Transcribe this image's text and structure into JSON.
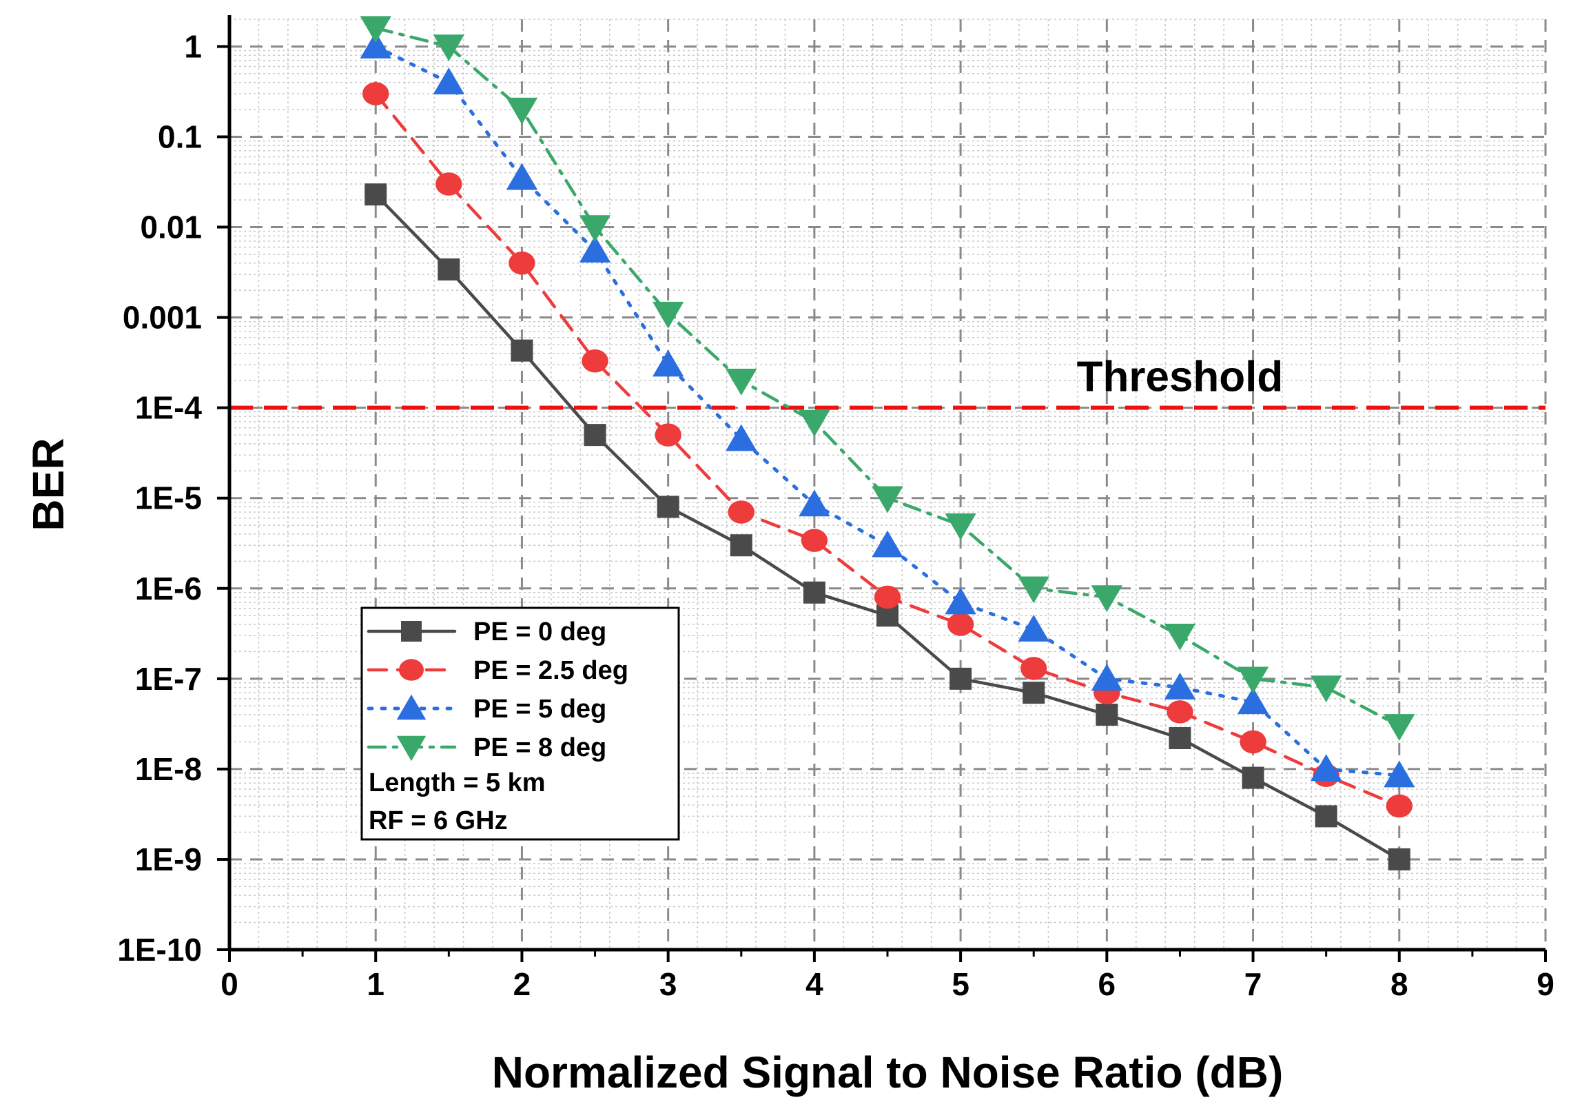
{
  "chart_data": {
    "type": "line",
    "title": "",
    "xlabel": "Normalized Signal to Noise Ratio (dB)",
    "ylabel": "BER",
    "xlim": [
      0,
      9
    ],
    "ylim": [
      1e-10,
      2
    ],
    "yscale": "log",
    "grid": true,
    "x_ticks": [
      "0",
      "1",
      "2",
      "3",
      "4",
      "5",
      "6",
      "7",
      "8",
      "9"
    ],
    "x_tick_values": [
      0,
      1,
      2,
      3,
      4,
      5,
      6,
      7,
      8,
      9
    ],
    "y_ticks": [
      "1",
      "0.1",
      "0.01",
      "0.001",
      "1E-4",
      "1E-5",
      "1E-6",
      "1E-7",
      "1E-8",
      "1E-9",
      "1E-10"
    ],
    "y_tick_values": [
      1,
      0.1,
      0.01,
      0.001,
      0.0001,
      1e-05,
      1e-06,
      1e-07,
      1e-08,
      1e-09,
      1e-10
    ],
    "x": [
      1,
      1.5,
      2,
      2.5,
      3,
      3.5,
      4,
      4.5,
      5,
      5.5,
      6,
      6.5,
      7,
      7.5,
      8
    ],
    "series": [
      {
        "name": "PE = 0 deg",
        "color": "#4a4a4a",
        "marker": "square",
        "dash": "solid",
        "values": [
          0.023,
          0.0034,
          0.00043,
          5e-05,
          8e-06,
          3e-06,
          9e-07,
          5e-07,
          1e-07,
          7e-08,
          4e-08,
          2.2e-08,
          8e-09,
          3e-09,
          1e-09
        ]
      },
      {
        "name": "PE = 2.5 deg",
        "color": "#ee3b3b",
        "marker": "circle",
        "dash": "dash",
        "values": [
          0.3,
          0.03,
          0.004,
          0.00033,
          5e-05,
          7e-06,
          3.4e-06,
          8e-07,
          4e-07,
          1.3e-07,
          7e-08,
          4.3e-08,
          2e-08,
          8.5e-09,
          3.9e-09
        ]
      },
      {
        "name": "PE = 5 deg",
        "color": "#2a6ee0",
        "marker": "triangle-up",
        "dash": "dot",
        "values": [
          1.0,
          0.4,
          0.035,
          0.0055,
          0.0003,
          4.5e-05,
          8.5e-06,
          3e-06,
          7e-07,
          3.5e-07,
          1e-07,
          8e-08,
          5.5e-08,
          1e-08,
          8.5e-09
        ]
      },
      {
        "name": "PE = 8 deg",
        "color": "#3aa86b",
        "marker": "triangle-down",
        "dash": "dashdot",
        "values": [
          1.6,
          1.0,
          0.2,
          0.01,
          0.0011,
          0.0002,
          7e-05,
          1e-05,
          5e-06,
          1e-06,
          8e-07,
          3e-07,
          1e-07,
          8e-08,
          3e-08
        ]
      }
    ],
    "threshold": {
      "value": 0.0001,
      "label": "Threshold",
      "color": "#ee1111"
    },
    "legend": {
      "placement": "bottom-left",
      "entries": [
        "PE = 0 deg",
        "PE = 2.5 deg",
        "PE = 5 deg",
        "PE = 8 deg"
      ],
      "notes": [
        "Length = 5 km",
        "RF = 6 GHz"
      ]
    }
  }
}
